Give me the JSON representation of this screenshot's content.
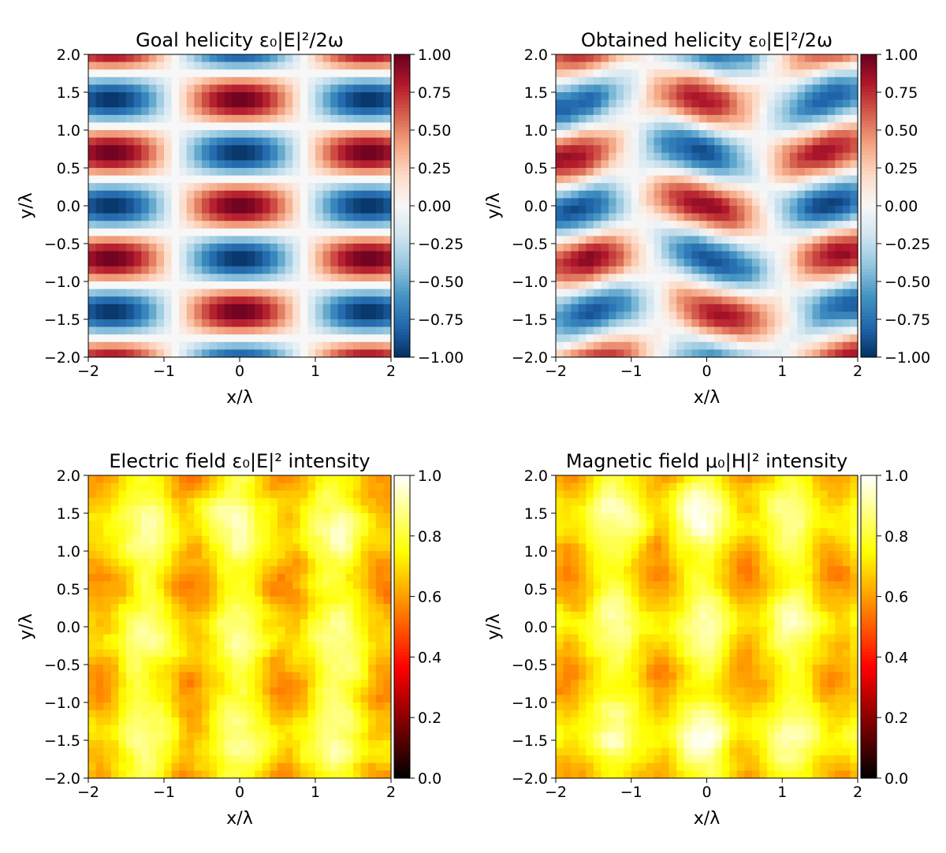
{
  "chart_data": [
    {
      "type": "heatmap",
      "field": "goal",
      "title": "Goal helicity ε₀|E|²/2ω",
      "xlabel": "x/λ",
      "ylabel": "y/λ",
      "xlim": [
        -2,
        2
      ],
      "ylim": [
        -2,
        2
      ],
      "xticks": [
        "−2",
        "−1",
        "0",
        "1",
        "2"
      ],
      "yticks": [
        "2.0",
        "1.5",
        "1.0",
        "0.5",
        "0.0",
        "−0.5",
        "−1.0",
        "−1.5",
        "−2.0"
      ],
      "colormap": "RdBu_r",
      "clim": [
        -1,
        1
      ],
      "colorbar_ticks": [
        "1.00",
        "0.75",
        "0.50",
        "0.25",
        "0.00",
        "−0.25",
        "−0.50",
        "−0.75",
        "−1.00"
      ]
    },
    {
      "type": "heatmap",
      "field": "obtained",
      "title": "Obtained helicity ε₀|E|²/2ω",
      "xlabel": "x/λ",
      "ylabel": "y/λ",
      "xlim": [
        -2,
        2
      ],
      "ylim": [
        -2,
        2
      ],
      "xticks": [
        "−2",
        "−1",
        "0",
        "1",
        "2"
      ],
      "yticks": [
        "2.0",
        "1.5",
        "1.0",
        "0.5",
        "0.0",
        "−0.5",
        "−1.0",
        "−1.5",
        "−2.0"
      ],
      "colormap": "RdBu_r",
      "clim": [
        -1,
        1
      ],
      "colorbar_ticks": [
        "1.00",
        "0.75",
        "0.50",
        "0.25",
        "0.00",
        "−0.25",
        "−0.50",
        "−0.75",
        "−1.00"
      ]
    },
    {
      "type": "heatmap",
      "field": "electric",
      "title": "Electric field ε₀|E|² intensity",
      "xlabel": "x/λ",
      "ylabel": "y/λ",
      "xlim": [
        -2,
        2
      ],
      "ylim": [
        -2,
        2
      ],
      "xticks": [
        "−2",
        "−1",
        "0",
        "1",
        "2"
      ],
      "yticks": [
        "2.0",
        "1.5",
        "1.0",
        "0.5",
        "0.0",
        "−0.5",
        "−1.0",
        "−1.5",
        "−2.0"
      ],
      "colormap": "hot",
      "clim": [
        0,
        1
      ],
      "colorbar_ticks": [
        "1.0",
        "0.8",
        "0.6",
        "0.4",
        "0.2",
        "0.0"
      ]
    },
    {
      "type": "heatmap",
      "field": "magnetic",
      "title": "Magnetic field μ₀|H|² intensity",
      "xlabel": "x/λ",
      "ylabel": "y/λ",
      "xlim": [
        -2,
        2
      ],
      "ylim": [
        -2,
        2
      ],
      "xticks": [
        "−2",
        "−1",
        "0",
        "1",
        "2"
      ],
      "yticks": [
        "2.0",
        "1.5",
        "1.0",
        "0.5",
        "0.0",
        "−0.5",
        "−1.0",
        "−1.5",
        "−2.0"
      ],
      "colormap": "hot",
      "clim": [
        0,
        1
      ],
      "colorbar_ticks": [
        "1.0",
        "0.8",
        "0.6",
        "0.4",
        "0.2",
        "0.0"
      ]
    }
  ]
}
